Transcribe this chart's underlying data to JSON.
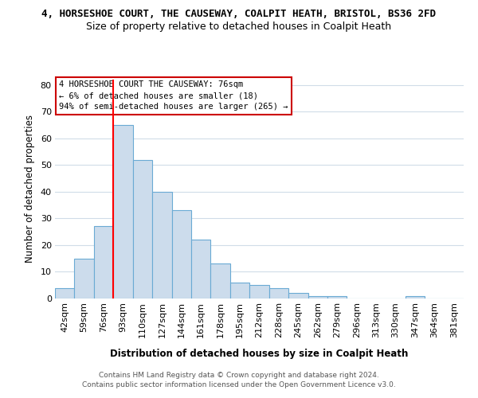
{
  "title_main": "4, HORSESHOE COURT, THE CAUSEWAY, COALPIT HEATH, BRISTOL, BS36 2FD",
  "title_sub": "Size of property relative to detached houses in Coalpit Heath",
  "xlabel": "Distribution of detached houses by size in Coalpit Heath",
  "ylabel": "Number of detached properties",
  "categories": [
    "42sqm",
    "59sqm",
    "76sqm",
    "93sqm",
    "110sqm",
    "127sqm",
    "144sqm",
    "161sqm",
    "178sqm",
    "195sqm",
    "212sqm",
    "228sqm",
    "245sqm",
    "262sqm",
    "279sqm",
    "296sqm",
    "313sqm",
    "330sqm",
    "347sqm",
    "364sqm",
    "381sqm"
  ],
  "values": [
    4,
    15,
    27,
    65,
    52,
    40,
    33,
    22,
    13,
    6,
    5,
    4,
    2,
    1,
    1,
    0,
    0,
    0,
    1,
    0,
    0
  ],
  "bar_color": "#ccdcec",
  "bar_edge_color": "#6aaad4",
  "red_line_index": 2,
  "annotation_line1": "4 HORSESHOE COURT THE CAUSEWAY: 76sqm",
  "annotation_line2": "← 6% of detached houses are smaller (18)",
  "annotation_line3": "94% of semi-detached houses are larger (265) →",
  "ylim": [
    0,
    82
  ],
  "yticks": [
    0,
    10,
    20,
    30,
    40,
    50,
    60,
    70,
    80
  ],
  "footer1": "Contains HM Land Registry data © Crown copyright and database right 2024.",
  "footer2": "Contains public sector information licensed under the Open Government Licence v3.0.",
  "background_color": "#ffffff",
  "plot_bg_color": "#ffffff",
  "grid_color": "#d0dce8",
  "title_fontsize": 9,
  "subtitle_fontsize": 9,
  "axis_label_fontsize": 8.5,
  "tick_fontsize": 8,
  "footer_fontsize": 6.5,
  "annotation_fontsize": 7.5
}
